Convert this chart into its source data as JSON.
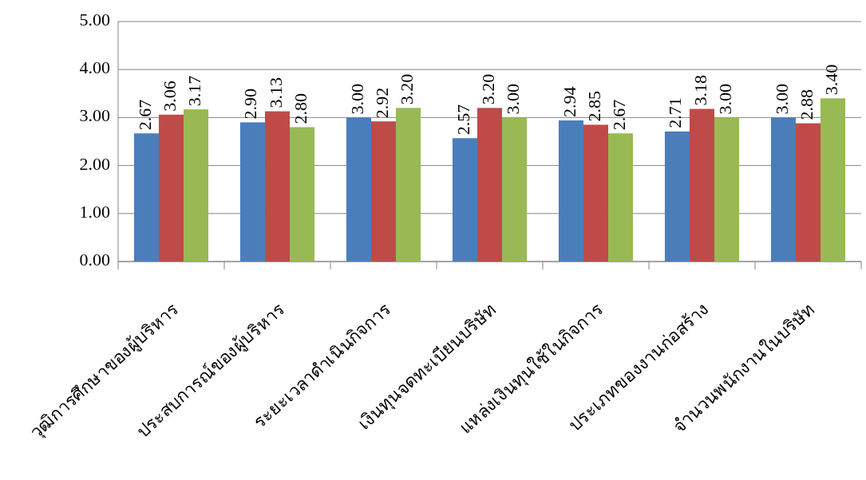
{
  "chart_data": {
    "type": "bar",
    "categories": [
      "วุฒิการศึกษาของผู้บริหาร",
      "ประสบการณ์ของผู้บริหาร",
      "ระยะเวลาดำเนินกิจการ",
      "เงินทุนจดทะเบียนบริษัท",
      "แหล่งเงินทุนใช้ในกิจการ",
      "ประเภทของงานก่อสร้าง",
      "จำนวนพนักงานในบริษัท"
    ],
    "series": [
      {
        "color": "#4a7ebb",
        "values": [
          2.67,
          2.9,
          3.0,
          2.57,
          2.94,
          2.71,
          3.0
        ],
        "value_labels": [
          "2.67",
          "2.90",
          "3.00",
          "2.57",
          "2.94",
          "2.71",
          "3.00"
        ]
      },
      {
        "color": "#be4b48",
        "values": [
          3.06,
          3.13,
          2.92,
          3.2,
          2.85,
          3.18,
          2.88
        ],
        "value_labels": [
          "3.06",
          "3.13",
          "2.92",
          "3.20",
          "2.85",
          "3.18",
          "2.88"
        ]
      },
      {
        "color": "#98b954",
        "values": [
          3.17,
          2.8,
          3.2,
          3.0,
          2.67,
          3.0,
          3.4
        ],
        "value_labels": [
          "3.17",
          "2.80",
          "3.20",
          "3.00",
          "2.67",
          "3.00",
          "3.40"
        ]
      }
    ],
    "ylim": [
      0,
      5
    ],
    "yticks": [
      {
        "value": 0,
        "label": "0.00"
      },
      {
        "value": 1,
        "label": "1.00"
      },
      {
        "value": 2,
        "label": "2.00"
      },
      {
        "value": 3,
        "label": "3.00"
      },
      {
        "value": 4,
        "label": "4.00"
      },
      {
        "value": 5,
        "label": "5.00"
      }
    ],
    "grid": "y"
  }
}
